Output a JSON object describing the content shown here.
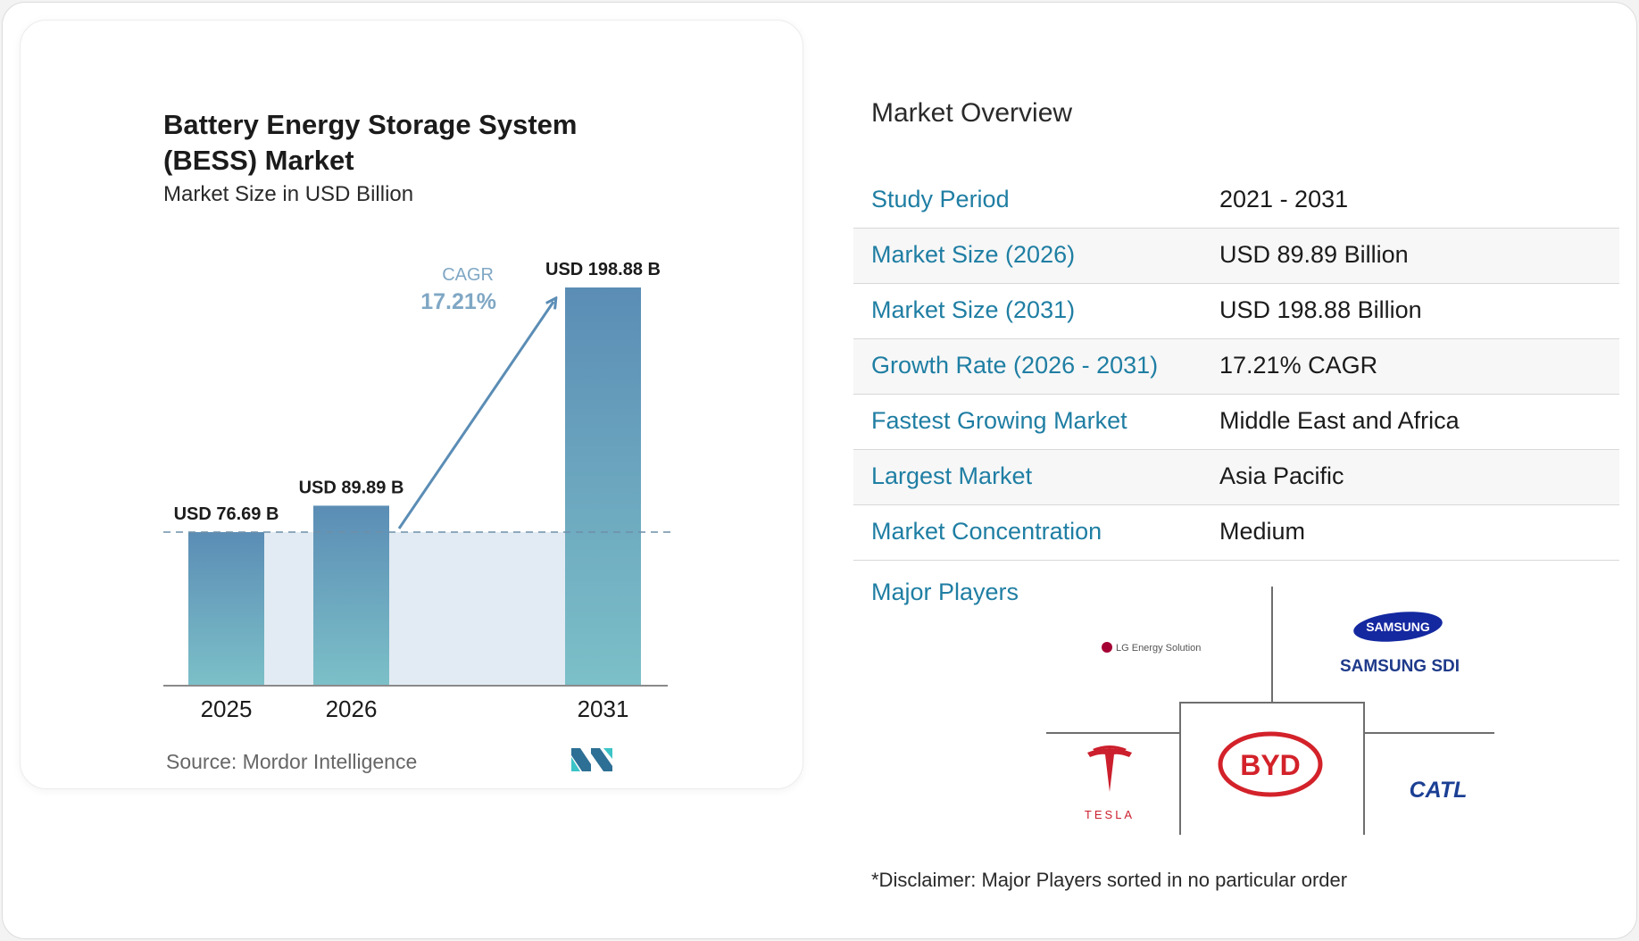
{
  "chart_data": {
    "type": "bar",
    "title_line1": "Battery Energy Storage System",
    "title_line2": "(BESS) Market",
    "subtitle": "Market Size in USD Billion",
    "categories": [
      "2025",
      "2026",
      "2031"
    ],
    "values": [
      76.69,
      89.89,
      198.88
    ],
    "value_labels": [
      "USD 76.69 B",
      "USD 89.89 B",
      "USD 198.88 B"
    ],
    "cagr_label": "CAGR",
    "cagr_value": "17.21%",
    "ylim": [
      0,
      198.88
    ],
    "colors": {
      "bar_top": "#5b8db5",
      "bar_bottom": "#7cc0c8",
      "band": "#e2ebf3",
      "arrow": "#5b8db5",
      "cagr": "#7fa7c4"
    }
  },
  "source": "Source: Mordor Intelligence",
  "logo": "mordor-intelligence-logo",
  "overview": {
    "title": "Market Overview",
    "rows": [
      {
        "label": "Study Period",
        "value": "2021 - 2031"
      },
      {
        "label": "Market Size (2026)",
        "value": "USD 89.89 Billion"
      },
      {
        "label": "Market Size (2031)",
        "value": "USD 198.88 Billion"
      },
      {
        "label": "Growth Rate (2026 - 2031)",
        "value": "17.21% CAGR"
      },
      {
        "label": "Fastest Growing Market",
        "value": "Middle East and Africa"
      },
      {
        "label": "Largest Market",
        "value": "Asia Pacific"
      },
      {
        "label": "Market Concentration",
        "value": "Medium"
      }
    ]
  },
  "players": {
    "label": "Major Players",
    "lg": "LG Energy Solution",
    "samsung_badge": "SAMSUNG",
    "samsung_sdi": "SAMSUNG SDI",
    "tesla": "TESLA",
    "byd": "BYD",
    "catl": "CATL"
  },
  "disclaimer": "*Disclaimer: Major Players sorted in no particular order"
}
